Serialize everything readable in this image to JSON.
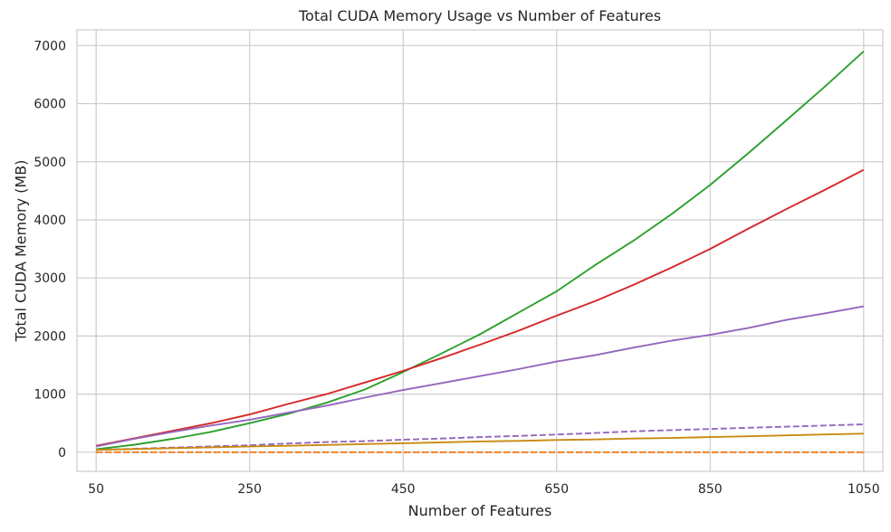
{
  "chart_data": {
    "type": "line",
    "title": "Total CUDA Memory Usage vs Number of Features",
    "xlabel": "Number of Features",
    "ylabel": "Total CUDA Memory (MB)",
    "x": [
      50,
      100,
      150,
      200,
      250,
      300,
      350,
      400,
      450,
      500,
      550,
      600,
      650,
      700,
      750,
      800,
      850,
      900,
      950,
      1000,
      1050
    ],
    "xlim": [
      25,
      1075
    ],
    "ylim": [
      -330,
      7270
    ],
    "xticks": [
      "50",
      "250",
      "450",
      "650",
      "850",
      "1050"
    ],
    "yticks": [
      "0",
      "1000",
      "2000",
      "3000",
      "4000",
      "5000",
      "6000",
      "7000"
    ],
    "grid": true,
    "series": [
      {
        "color": "#2ca02c",
        "dash": "solid",
        "values": [
          50,
          130,
          230,
          350,
          500,
          660,
          850,
          1080,
          1380,
          1700,
          2030,
          2400,
          2770,
          3220,
          3640,
          4100,
          4600,
          5150,
          5720,
          6300,
          6900
        ]
      },
      {
        "color": "#d62728",
        "dash": "solid",
        "values": [
          110,
          240,
          370,
          500,
          650,
          830,
          1000,
          1200,
          1400,
          1620,
          1850,
          2090,
          2350,
          2600,
          2880,
          3180,
          3500,
          3850,
          4190,
          4520,
          4860
        ]
      },
      {
        "color": "#9467bd",
        "dash": "solid",
        "values": [
          100,
          230,
          350,
          460,
          560,
          680,
          800,
          940,
          1070,
          1190,
          1310,
          1430,
          1560,
          1670,
          1800,
          1920,
          2020,
          2140,
          2280,
          2390,
          2510
        ]
      },
      {
        "color": "#9467bd",
        "dash": "dashed",
        "values": [
          40,
          60,
          80,
          100,
          120,
          150,
          175,
          190,
          215,
          235,
          260,
          280,
          305,
          330,
          360,
          380,
          400,
          420,
          440,
          460,
          480
        ]
      },
      {
        "color": "#c88a12",
        "dash": "solid",
        "values": [
          40,
          55,
          70,
          85,
          100,
          110,
          125,
          140,
          155,
          170,
          185,
          195,
          210,
          220,
          235,
          245,
          260,
          275,
          290,
          305,
          320
        ]
      },
      {
        "color": "#1f77b4",
        "dash": "dotted",
        "values": [
          0,
          0,
          0,
          0,
          0,
          0,
          0,
          0,
          0,
          0,
          0,
          0,
          0,
          0,
          0,
          0,
          0,
          0,
          0,
          0,
          0
        ]
      },
      {
        "color": "#ff7f0e",
        "dash": "dashed",
        "values": [
          0,
          0,
          0,
          0,
          0,
          0,
          0,
          0,
          0,
          0,
          0,
          0,
          0,
          0,
          0,
          0,
          0,
          0,
          0,
          0,
          0
        ]
      }
    ]
  }
}
